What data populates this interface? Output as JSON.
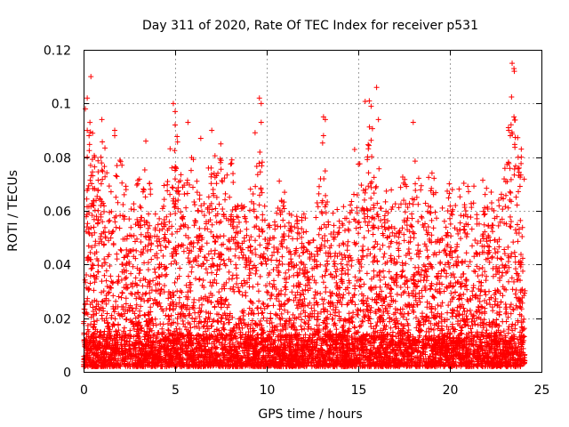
{
  "chart_data": {
    "type": "scatter",
    "title": "Day 311 of 2020, Rate Of TEC Index for receiver p531",
    "xlabel": "GPS time / hours",
    "ylabel": "ROTI / TECUs",
    "xlim": [
      0,
      25
    ],
    "ylim": [
      0,
      0.12
    ],
    "x_ticks": [
      "0",
      "5",
      "10",
      "15",
      "20",
      "25"
    ],
    "y_ticks": [
      "0",
      "0.02",
      "0.04",
      "0.06",
      "0.08",
      "0.1",
      "0.12"
    ],
    "grid": true,
    "marker": "+",
    "color": "#ff0000",
    "envelope": {
      "x": [
        0,
        0.3,
        0.7,
        1.0,
        1.5,
        2.0,
        2.5,
        3.0,
        3.5,
        4.0,
        4.5,
        5.0,
        5.5,
        6.0,
        6.5,
        7.0,
        7.5,
        8.0,
        8.5,
        9.0,
        9.5,
        10.0,
        10.5,
        11.0,
        11.5,
        12.0,
        12.5,
        13.0,
        13.5,
        14.0,
        14.5,
        15.0,
        15.5,
        16.0,
        16.5,
        17.0,
        17.5,
        18.0,
        18.5,
        19.0,
        19.5,
        20.0,
        20.5,
        21.0,
        21.5,
        22.0,
        22.5,
        23.0,
        23.5,
        24.0
      ],
      "y": [
        0.045,
        0.1,
        0.085,
        0.093,
        0.07,
        0.088,
        0.06,
        0.075,
        0.08,
        0.07,
        0.075,
        0.098,
        0.075,
        0.085,
        0.07,
        0.09,
        0.085,
        0.082,
        0.07,
        0.075,
        0.1,
        0.06,
        0.07,
        0.072,
        0.065,
        0.068,
        0.055,
        0.095,
        0.06,
        0.072,
        0.07,
        0.098,
        0.106,
        0.088,
        0.07,
        0.072,
        0.074,
        0.085,
        0.085,
        0.075,
        0.065,
        0.075,
        0.068,
        0.078,
        0.07,
        0.08,
        0.06,
        0.088,
        0.115,
        0.08
      ]
    },
    "extreme_points": [
      {
        "x": 0.2,
        "y": 0.102
      },
      {
        "x": 0.4,
        "y": 0.11
      },
      {
        "x": 0.1,
        "y": 0.098
      },
      {
        "x": 0.2,
        "y": 0.09
      },
      {
        "x": 0.3,
        "y": 0.088
      },
      {
        "x": 0.2,
        "y": 0.08
      },
      {
        "x": 1.0,
        "y": 0.094
      },
      {
        "x": 1.7,
        "y": 0.09
      },
      {
        "x": 1.7,
        "y": 0.088
      },
      {
        "x": 3.4,
        "y": 0.086
      },
      {
        "x": 4.9,
        "y": 0.1
      },
      {
        "x": 5.0,
        "y": 0.097
      },
      {
        "x": 5.0,
        "y": 0.092
      },
      {
        "x": 5.7,
        "y": 0.093
      },
      {
        "x": 6.4,
        "y": 0.087
      },
      {
        "x": 7.0,
        "y": 0.09
      },
      {
        "x": 9.6,
        "y": 0.102
      },
      {
        "x": 9.7,
        "y": 0.1
      },
      {
        "x": 9.7,
        "y": 0.093
      },
      {
        "x": 13.1,
        "y": 0.095
      },
      {
        "x": 13.2,
        "y": 0.094
      },
      {
        "x": 13.1,
        "y": 0.088
      },
      {
        "x": 15.6,
        "y": 0.101
      },
      {
        "x": 15.7,
        "y": 0.099
      },
      {
        "x": 16.0,
        "y": 0.106
      },
      {
        "x": 16.1,
        "y": 0.094
      },
      {
        "x": 18.0,
        "y": 0.093
      },
      {
        "x": 23.4,
        "y": 0.115
      },
      {
        "x": 23.5,
        "y": 0.113
      },
      {
        "x": 23.5,
        "y": 0.095
      },
      {
        "x": 23.2,
        "y": 0.091
      },
      {
        "x": 23.3,
        "y": 0.088
      },
      {
        "x": 23.9,
        "y": 0.083
      },
      {
        "x": 23.9,
        "y": 0.08
      }
    ]
  }
}
